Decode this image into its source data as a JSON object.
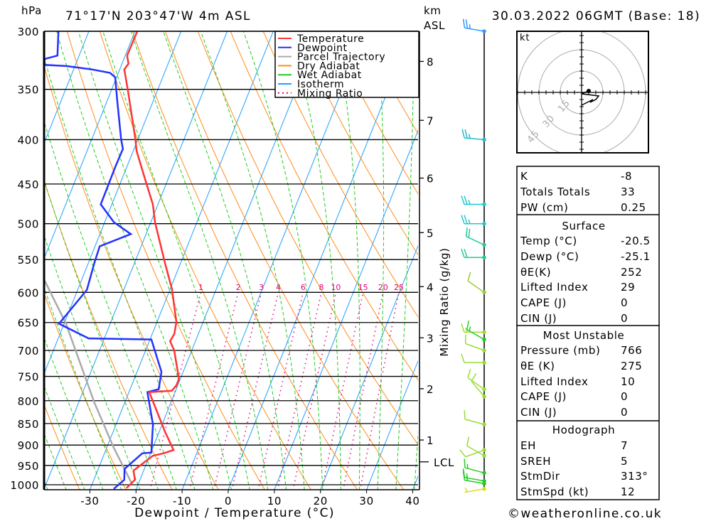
{
  "header": {
    "pressure_unit": "hPa",
    "location": "71°17'N 203°47'W 4m ASL",
    "km_label": "km",
    "asl_label": "ASL",
    "datetime": "30.03.2022 06GMT (Base: 18)"
  },
  "footer": {
    "copyright": "©weatheronline.co.uk"
  },
  "chart_data": {
    "type": "skew-t",
    "title": "71°17'N 203°47'W 4m ASL",
    "xlabel": "Dewpoint / Temperature (°C)",
    "ylabel": "hPa",
    "secondary_ylabel": "Mixing Ratio (g/kg)",
    "xlim": [
      -40,
      41
    ],
    "ylim": [
      1011,
      300
    ],
    "xticks": [
      "-30",
      "-20",
      "-10",
      "0",
      "10",
      "20",
      "30",
      "40"
    ],
    "pressure_levels": [
      "300",
      "350",
      "400",
      "450",
      "500",
      "550",
      "600",
      "650",
      "700",
      "750",
      "800",
      "850",
      "900",
      "950",
      "1000"
    ],
    "legend": [
      {
        "label": "Temperature",
        "color": "#ff3333",
        "style": "solid"
      },
      {
        "label": "Dewpoint",
        "color": "#2233ff",
        "style": "solid"
      },
      {
        "label": "Parcel Trajectory",
        "color": "#aaaaaa",
        "style": "solid"
      },
      {
        "label": "Dry Adiabat",
        "color": "#ff8c1a",
        "style": "solid"
      },
      {
        "label": "Wet Adiabat",
        "color": "#22cc22",
        "style": "solid"
      },
      {
        "label": "Isotherm",
        "color": "#1ea0ff",
        "style": "solid"
      },
      {
        "label": "Mixing Ratio",
        "color": "#e6007e",
        "style": "dotted"
      }
    ],
    "temperature": [
      [
        300,
        -59.5
      ],
      [
        317,
        -59.6
      ],
      [
        320,
        -59.6
      ],
      [
        327,
        -58.6
      ],
      [
        332,
        -59.0
      ],
      [
        351,
        -56.4
      ],
      [
        400,
        -50.5
      ],
      [
        412,
        -49.3
      ],
      [
        448,
        -44.5
      ],
      [
        475,
        -41.1
      ],
      [
        498,
        -39.1
      ],
      [
        555,
        -33.4
      ],
      [
        595,
        -29.6
      ],
      [
        649,
        -25.8
      ],
      [
        670,
        -25.2
      ],
      [
        683,
        -25.5
      ],
      [
        700,
        -23.8
      ],
      [
        755,
        -20.3
      ],
      [
        768,
        -20.3
      ],
      [
        779,
        -20.8
      ],
      [
        782,
        -25.6
      ],
      [
        868,
        -18.8
      ],
      [
        912,
        -15.3
      ],
      [
        920,
        -17.2
      ],
      [
        926,
        -19.3
      ],
      [
        963,
        -22.2
      ],
      [
        987,
        -21.1
      ],
      [
        1009,
        -22.2
      ]
    ],
    "dewpoint": [
      [
        300,
        -76.6
      ],
      [
        320,
        -74.7
      ],
      [
        323,
        -77.2
      ],
      [
        328,
        -76.7
      ],
      [
        329,
        -71.9
      ],
      [
        332,
        -66.0
      ],
      [
        335,
        -61.8
      ],
      [
        339,
        -60.3
      ],
      [
        360,
        -57.9
      ],
      [
        400,
        -53.6
      ],
      [
        410,
        -52.4
      ],
      [
        429,
        -52.5
      ],
      [
        475,
        -52.4
      ],
      [
        498,
        -48.0
      ],
      [
        514,
        -43.3
      ],
      [
        531,
        -49.0
      ],
      [
        555,
        -48.7
      ],
      [
        596,
        -48.0
      ],
      [
        652,
        -51.1
      ],
      [
        678,
        -43.4
      ],
      [
        680,
        -29.7
      ],
      [
        741,
        -24.7
      ],
      [
        776,
        -23.8
      ],
      [
        782,
        -26.0
      ],
      [
        852,
        -22.0
      ],
      [
        918,
        -19.9
      ],
      [
        920,
        -21.8
      ],
      [
        959,
        -24.3
      ],
      [
        987,
        -23.4
      ],
      [
        1011,
        -24.9
      ]
    ],
    "parcel": [
      [
        582,
        -57.9
      ],
      [
        652,
        -49.6
      ],
      [
        805,
        -36.5
      ],
      [
        906,
        -28.5
      ],
      [
        996,
        -21.5
      ]
    ],
    "mixing_ratio_labels": [
      "1",
      "2",
      "3",
      "4",
      "6",
      "8",
      "10",
      "15",
      "20",
      "25"
    ],
    "km_axis": [
      {
        "label": "8",
        "p": 325
      },
      {
        "label": "7",
        "p": 380
      },
      {
        "label": "6",
        "p": 443
      },
      {
        "label": "5",
        "p": 512
      },
      {
        "label": "4",
        "p": 591
      },
      {
        "label": "3",
        "p": 677
      },
      {
        "label": "2",
        "p": 775
      },
      {
        "label": "1",
        "p": 888
      }
    ],
    "lcl": {
      "label": "LCL",
      "p": 941
    },
    "winds": [
      {
        "p": 300,
        "dir": 280,
        "spd": 25,
        "color": "#3399ff"
      },
      {
        "p": 400,
        "dir": 275,
        "spd": 25,
        "color": "#22bbcc"
      },
      {
        "p": 475,
        "dir": 270,
        "spd": 25,
        "color": "#22c8cc"
      },
      {
        "p": 500,
        "dir": 270,
        "spd": 25,
        "color": "#22c8cc"
      },
      {
        "p": 529,
        "dir": 295,
        "spd": 20,
        "color": "#22cc99"
      },
      {
        "p": 547,
        "dir": 270,
        "spd": 20,
        "color": "#22cc88"
      },
      {
        "p": 600,
        "dir": 305,
        "spd": 10,
        "color": "#99cc33"
      },
      {
        "p": 667,
        "dir": 270,
        "spd": 15,
        "color": "#99dd33"
      },
      {
        "p": 680,
        "dir": 300,
        "spd": 15,
        "color": "#22cc22"
      },
      {
        "p": 700,
        "dir": 290,
        "spd": 10,
        "color": "#99dd33"
      },
      {
        "p": 723,
        "dir": 270,
        "spd": 10,
        "color": "#99dd33"
      },
      {
        "p": 776,
        "dir": 305,
        "spd": 10,
        "color": "#99dd33"
      },
      {
        "p": 791,
        "dir": 320,
        "spd": 10,
        "color": "#99dd33"
      },
      {
        "p": 852,
        "dir": 285,
        "spd": 10,
        "color": "#99dd33"
      },
      {
        "p": 912,
        "dir": 250,
        "spd": 10,
        "color": "#99dd33"
      },
      {
        "p": 926,
        "dir": 300,
        "spd": 10,
        "color": "#99dd33"
      },
      {
        "p": 969,
        "dir": 285,
        "spd": 15,
        "color": "#22cc22"
      },
      {
        "p": 990,
        "dir": 280,
        "spd": 15,
        "color": "#22cc22"
      },
      {
        "p": 997,
        "dir": 280,
        "spd": 15,
        "color": "#22cc22"
      },
      {
        "p": 1011,
        "dir": 260,
        "spd": 5,
        "color": "#dddd22"
      }
    ],
    "hodograph": {
      "unit": "kt",
      "rings": [
        "15",
        "30",
        "45"
      ],
      "trace": [
        [
          5,
          1
        ],
        [
          0,
          -1
        ],
        [
          12,
          -2.5
        ],
        [
          10,
          -5
        ],
        [
          6,
          -7
        ],
        [
          8,
          -5
        ],
        [
          0,
          -9
        ]
      ]
    }
  },
  "indices": {
    "sections": [
      {
        "title": null,
        "rows": [
          [
            "K",
            "-8"
          ],
          [
            "Totals Totals",
            "33"
          ],
          [
            "PW (cm)",
            "0.25"
          ]
        ]
      },
      {
        "title": "Surface",
        "rows": [
          [
            "Temp (°C)",
            "-20.5"
          ],
          [
            "Dewp (°C)",
            "-25.1"
          ],
          [
            "θE(K)",
            "252"
          ],
          [
            "Lifted Index",
            "29"
          ],
          [
            "CAPE (J)",
            "0"
          ],
          [
            "CIN (J)",
            "0"
          ]
        ]
      },
      {
        "title": "Most Unstable",
        "rows": [
          [
            "Pressure (mb)",
            "766"
          ],
          [
            "θE (K)",
            "275"
          ],
          [
            "Lifted Index",
            "10"
          ],
          [
            "CAPE (J)",
            "0"
          ],
          [
            "CIN (J)",
            "0"
          ]
        ]
      },
      {
        "title": "Hodograph",
        "rows": [
          [
            "EH",
            "7"
          ],
          [
            "SREH",
            "5"
          ],
          [
            "StmDir",
            "313°"
          ],
          [
            "StmSpd (kt)",
            "12"
          ]
        ]
      }
    ]
  }
}
